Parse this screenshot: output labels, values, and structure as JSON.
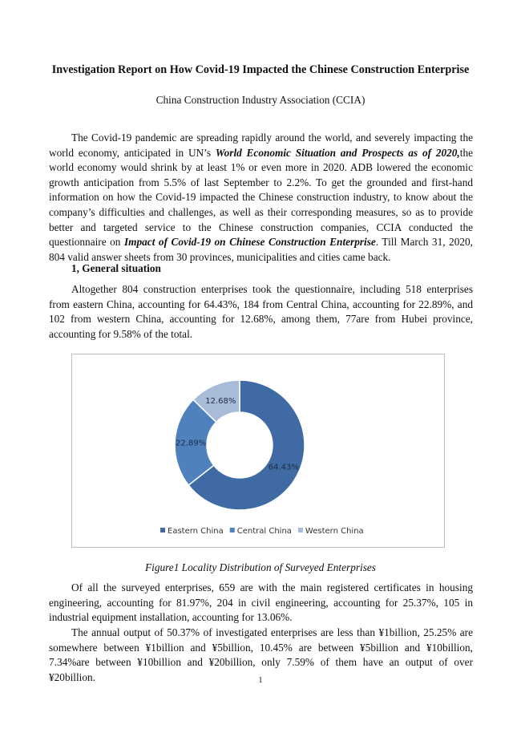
{
  "title": "Investigation Report on How Covid-19 Impacted the Chinese Construction Enterprise",
  "subtitle": "China Construction Industry Association (CCIA)",
  "intro": {
    "t1": "The Covid-19 pandemic are spreading rapidly around the world, and severely impacting the world economy, anticipated in UN’s ",
    "em1": "World Economic Situation and Prospects as of 2020,",
    "t2": "the world economy would shrink by at least 1% or even more in 2020. ADB lowered the economic growth anticipation from 5.5% of last September to 2.2%. To get the grounded and first-hand information on how the Covid-19 impacted the Chinese construction industry, to know about the company’s difficulties and challenges, as well as their corresponding measures, so as to provide better and targeted service to the Chinese construction companies, CCIA conducted the questionnaire on ",
    "em2": "Impact of Covid-19 on Chinese Construction Enterprise",
    "t3": ". Till March 31, 2020, 804 valid answer sheets from 30 provinces, municipalities and cities came back."
  },
  "section1": {
    "heading": "1, General situation",
    "p1": "Altogether 804 construction enterprises took the questionnaire, including 518 enterprises from eastern China, accounting for 64.43%, 184 from Central China, accounting for 22.89%, and 102 from western China, accounting for 12.68%, among them, 77are from Hubei province, accounting for 9.58% of the total.",
    "caption": "Figure1 Locality Distribution of Surveyed Enterprises",
    "p2": "Of all the surveyed enterprises, 659 are with the main registered certificates in housing engineering, accounting for 81.97%, 204 in civil engineering, accounting for 25.37%, 105 in industrial equipment installation, accounting for 13.06%.",
    "p3": "The annual output of 50.37% of investigated enterprises are less than ¥1billion, 25.25% are somewhere between ¥1billion and ¥5billion, 10.45% are between ¥5billion and ¥10billion, 7.34%are between ¥10billion and ¥20billion, only 7.59% of them have an output of over ¥20billion."
  },
  "page_number": "1",
  "chart_data": {
    "type": "pie",
    "variant": "donut",
    "categories": [
      "Eastern China",
      "Central China",
      "Western China"
    ],
    "values": [
      64.43,
      22.89,
      12.68
    ],
    "labels": [
      "64.43%",
      "22.89%",
      "12.68%"
    ],
    "colors": [
      "#3f6aa3",
      "#4f81bd",
      "#a8bbd9"
    ],
    "legend": "bottom"
  }
}
